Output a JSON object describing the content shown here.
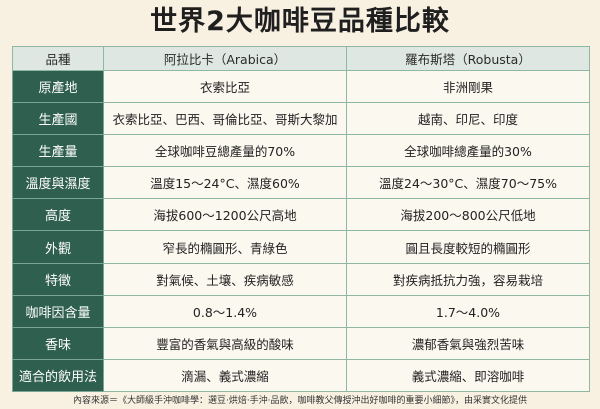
{
  "title": "世界2大咖啡豆品種比較",
  "table": {
    "headers": [
      "品種",
      "阿拉比卡（Arabica）",
      "羅布斯塔（Robusta）"
    ],
    "rows": [
      {
        "label": "原產地",
        "arabica": "衣索比亞",
        "robusta": "非洲剛果"
      },
      {
        "label": "生產國",
        "arabica": "衣索比亞、巴西、哥倫比亞、哥斯大黎加",
        "robusta": "越南、印尼、印度"
      },
      {
        "label": "生產量",
        "arabica": "全球咖啡豆總產量的70%",
        "robusta": "全球咖啡總產量的30%"
      },
      {
        "label": "溫度與濕度",
        "arabica": "溫度15～24°C、濕度60%",
        "robusta": "溫度24～30°C、濕度70～75%"
      },
      {
        "label": "高度",
        "arabica": "海拔600～1200公尺高地",
        "robusta": "海拔200～800公尺低地"
      },
      {
        "label": "外觀",
        "arabica": "窄長的橢圓形、青綠色",
        "robusta": "圓且長度較短的橢圓形"
      },
      {
        "label": "特徵",
        "arabica": "對氣候、土壤、疾病敏感",
        "robusta": "對疾病抵抗力強，容易栽培"
      },
      {
        "label": "咖啡因含量",
        "arabica": "0.8～1.4%",
        "robusta": "1.7～4.0%"
      },
      {
        "label": "香味",
        "arabica": "豐富的香氣與高級的酸味",
        "robusta": "濃郁香氣與強烈苦味"
      },
      {
        "label": "適合的飲用法",
        "arabica": "滴漏、義式濃縮",
        "robusta": "義式濃縮、即溶咖啡"
      }
    ]
  },
  "footer": "內容來源＝《大師級手沖咖啡學：選豆·烘焙·手沖·品飲，咖啡教父傳授沖出好咖啡的重要小細節》，由采實文化提供"
}
